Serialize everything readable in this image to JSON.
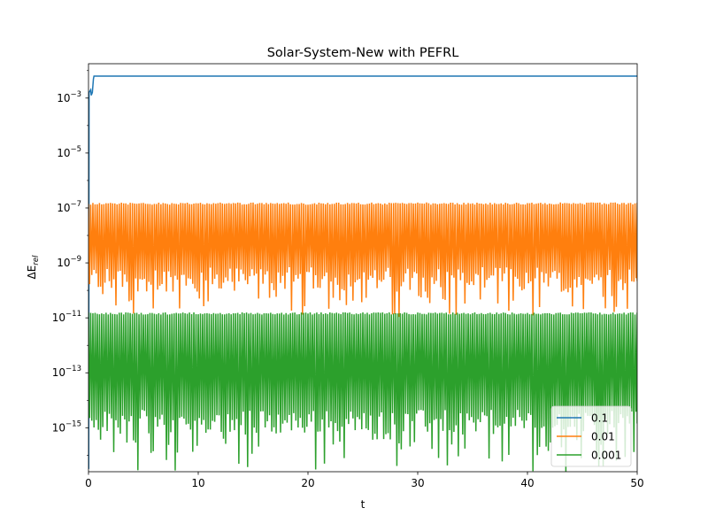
{
  "chart_data": {
    "type": "line",
    "title": "Solar-System-New with PEFRL",
    "xlabel": "t",
    "ylabel": "ΔE",
    "ylabel_subscript": "rel",
    "xlim": [
      0,
      50
    ],
    "ylim_log10": [
      -16.6,
      -1.75
    ],
    "y_scale": "log",
    "x_ticks": [
      0,
      10,
      20,
      30,
      40,
      50
    ],
    "x_tick_labels": [
      "0",
      "10",
      "20",
      "30",
      "40",
      "50"
    ],
    "y_ticks_log10": [
      -3,
      -5,
      -7,
      -9,
      -11,
      -13,
      -15
    ],
    "y_tick_base": "10",
    "y_tick_exponents": [
      "−3",
      "−5",
      "−7",
      "−9",
      "−11",
      "−13",
      "−15"
    ],
    "grid": false,
    "legend_position": "lower-right",
    "series": [
      {
        "name": "0.1",
        "color": "#1f77b4",
        "behavior": "step",
        "points_log10": [
          [
            0.02,
            -16.5
          ],
          [
            0.05,
            -2.8
          ],
          [
            0.2,
            -2.7
          ],
          [
            0.25,
            -2.9
          ],
          [
            0.35,
            -2.8
          ],
          [
            0.45,
            -2.3
          ],
          [
            0.5,
            -2.2
          ],
          [
            50,
            -2.2
          ]
        ]
      },
      {
        "name": "0.01",
        "color": "#ff7f0e",
        "behavior": "oscillating",
        "upper_log10": -6.8,
        "lower_log10_typical": -9.6,
        "lower_log10_min": -10.7
      },
      {
        "name": "0.001",
        "color": "#2ca02c",
        "behavior": "oscillating",
        "upper_log10": -10.8,
        "lower_log10_typical": -14.8,
        "lower_log10_min": -16.6
      }
    ]
  }
}
